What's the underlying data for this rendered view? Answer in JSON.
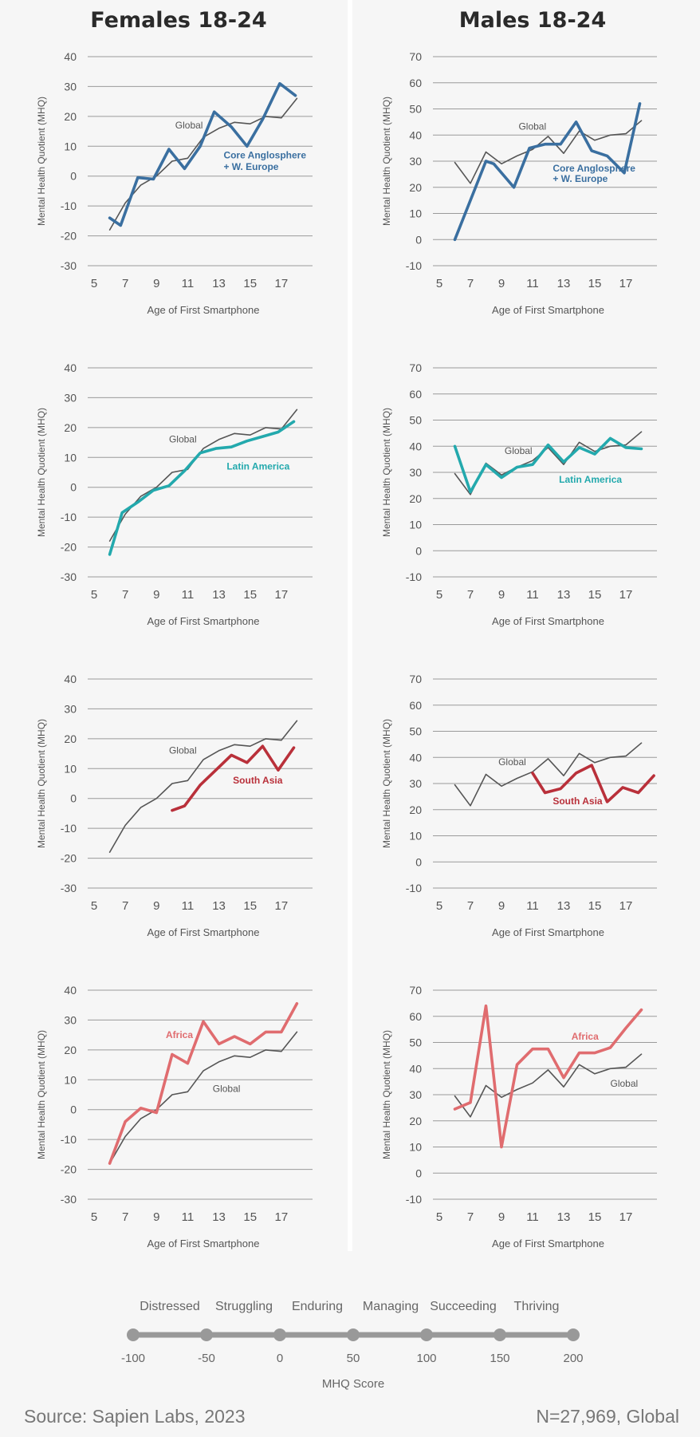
{
  "columns": {
    "left_title": "Females 18-24",
    "right_title": "Males 18-24"
  },
  "colors": {
    "global": "#555555",
    "core_anglosphere": "#3a6fa0",
    "latin_america": "#23a9ad",
    "south_asia": "#b9303a",
    "africa": "#e06c6f"
  },
  "chart_data": [
    {
      "type": "line",
      "panel": "females-core",
      "xlabel": "Age of First Smartphone",
      "ylabel": "Mental Health Quotient (MHQ)",
      "xlim": [
        5,
        19
      ],
      "xticks": [
        5,
        7,
        9,
        11,
        13,
        15,
        17
      ],
      "ylim": [
        -30,
        40
      ],
      "yticks": [
        -30,
        -20,
        -10,
        0,
        10,
        20,
        30,
        40
      ],
      "grid": true,
      "series": [
        {
          "name": "Global",
          "color": "#555555",
          "x": [
            6,
            7,
            8,
            9,
            10,
            11,
            12,
            13,
            14,
            15,
            16,
            17,
            18
          ],
          "y": [
            -18,
            -9,
            -3,
            0,
            5,
            6,
            13,
            16,
            18,
            17.5,
            20,
            19.5,
            26
          ]
        },
        {
          "name": "Core Anglosphere + W. Europe",
          "color": "#3a6fa0",
          "x": [
            6,
            6.7,
            7.8,
            8.8,
            9.8,
            10.8,
            11.8,
            12.7,
            13.8,
            14.8,
            15.8,
            16.9,
            17.9
          ],
          "y": [
            -14,
            -16.5,
            -0.5,
            -1,
            9,
            2.5,
            10,
            21.5,
            16.5,
            10,
            19,
            31,
            27
          ]
        }
      ],
      "annotations": [
        {
          "text": "Global",
          "x": 10.2,
          "y": 16
        },
        {
          "text": "Core Anglosphere",
          "x": 13.3,
          "y": 6
        },
        {
          "text": "+ W. Europe",
          "x": 13.3,
          "y": 2
        }
      ]
    },
    {
      "type": "line",
      "panel": "males-core",
      "xlabel": "Age of First Smartphone",
      "ylabel": "Mental Health Quotient (MHQ)",
      "xlim": [
        5,
        19
      ],
      "xticks": [
        5,
        7,
        9,
        11,
        13,
        15,
        17
      ],
      "ylim": [
        -10,
        70
      ],
      "yticks": [
        -10,
        0,
        10,
        20,
        30,
        40,
        50,
        60,
        70
      ],
      "grid": true,
      "series": [
        {
          "name": "Global",
          "color": "#555555",
          "x": [
            6,
            7,
            8,
            9,
            10,
            11,
            12,
            13,
            14,
            15,
            16,
            17,
            18
          ],
          "y": [
            29.5,
            21.5,
            33.5,
            29,
            32,
            34.5,
            39.5,
            33,
            41.5,
            38,
            40,
            40.5,
            45.5
          ]
        },
        {
          "name": "Core Anglosphere + W. Europe",
          "color": "#3a6fa0",
          "x": [
            6,
            8,
            8.5,
            9.8,
            10.8,
            11.8,
            12.8,
            13.8,
            14.8,
            15.8,
            16.9,
            17.9
          ],
          "y": [
            0,
            30,
            29,
            20,
            35,
            36.5,
            36.5,
            45,
            34,
            32,
            25.5,
            52
          ]
        }
      ],
      "annotations": [
        {
          "text": "Global",
          "x": 10.1,
          "y": 42
        },
        {
          "text": "Core Anglosphere",
          "x": 12.3,
          "y": 26
        },
        {
          "text": "+ W. Europe",
          "x": 12.3,
          "y": 22
        }
      ]
    },
    {
      "type": "line",
      "panel": "females-latam",
      "xlabel": "Age of First Smartphone",
      "ylabel": "Mental Health Quotient (MHQ)",
      "xlim": [
        5,
        19
      ],
      "xticks": [
        5,
        7,
        9,
        11,
        13,
        15,
        17
      ],
      "ylim": [
        -30,
        40
      ],
      "yticks": [
        -30,
        -20,
        -10,
        0,
        10,
        20,
        30,
        40
      ],
      "grid": true,
      "series": [
        {
          "name": "Global",
          "color": "#555555",
          "x": [
            6,
            7,
            8,
            9,
            10,
            11,
            12,
            13,
            14,
            15,
            16,
            17,
            18
          ],
          "y": [
            -18,
            -9,
            -3,
            0,
            5,
            6,
            13,
            16,
            18,
            17.5,
            20,
            19.5,
            26
          ]
        },
        {
          "name": "Latin America",
          "color": "#23a9ad",
          "x": [
            6,
            6.8,
            7.8,
            8.8,
            9.8,
            10.8,
            11.8,
            12.8,
            13.8,
            14.8,
            15.8,
            16.8,
            17.8
          ],
          "y": [
            -22.5,
            -8.5,
            -5,
            -1,
            0.5,
            5.5,
            11.5,
            13,
            13.5,
            15.5,
            17,
            18.5,
            22
          ]
        }
      ],
      "annotations": [
        {
          "text": "Global",
          "x": 9.8,
          "y": 15
        },
        {
          "text": "Latin America",
          "x": 13.5,
          "y": 6
        }
      ]
    },
    {
      "type": "line",
      "panel": "males-latam",
      "xlabel": "Age of First Smartphone",
      "ylabel": "Mental Health Quotient (MHQ)",
      "xlim": [
        5,
        19
      ],
      "xticks": [
        5,
        7,
        9,
        11,
        13,
        15,
        17
      ],
      "ylim": [
        -10,
        70
      ],
      "yticks": [
        -10,
        0,
        10,
        20,
        30,
        40,
        50,
        60,
        70
      ],
      "grid": true,
      "series": [
        {
          "name": "Global",
          "color": "#555555",
          "x": [
            6,
            7,
            8,
            9,
            10,
            11,
            12,
            13,
            14,
            15,
            16,
            17,
            18
          ],
          "y": [
            29.5,
            21.5,
            33.5,
            29,
            32,
            34.5,
            39.5,
            33,
            41.5,
            38,
            40,
            40.5,
            45.5
          ]
        },
        {
          "name": "Latin America",
          "color": "#23a9ad",
          "x": [
            6,
            7,
            8,
            9,
            10,
            11,
            12,
            13,
            14,
            15,
            16,
            17,
            18
          ],
          "y": [
            40,
            22.5,
            33,
            28,
            32,
            33,
            40.5,
            34,
            39.5,
            37,
            43,
            39.5,
            39
          ]
        }
      ],
      "annotations": [
        {
          "text": "Global",
          "x": 9.2,
          "y": 37
        },
        {
          "text": "Latin America",
          "x": 12.7,
          "y": 26
        }
      ]
    },
    {
      "type": "line",
      "panel": "females-southasia",
      "xlabel": "Age of First Smartphone",
      "ylabel": "Mental Health Quotient (MHQ)",
      "xlim": [
        5,
        19
      ],
      "xticks": [
        5,
        7,
        9,
        11,
        13,
        15,
        17
      ],
      "ylim": [
        -30,
        40
      ],
      "yticks": [
        -30,
        -20,
        -10,
        0,
        10,
        20,
        30,
        40
      ],
      "grid": true,
      "series": [
        {
          "name": "Global",
          "color": "#555555",
          "x": [
            6,
            7,
            8,
            9,
            10,
            11,
            12,
            13,
            14,
            15,
            16,
            17,
            18
          ],
          "y": [
            -18,
            -9,
            -3,
            0,
            5,
            6,
            13,
            16,
            18,
            17.5,
            20,
            19.5,
            26
          ]
        },
        {
          "name": "South Asia",
          "color": "#b9303a",
          "x": [
            10,
            10.8,
            11.8,
            12.8,
            13.8,
            14.8,
            15.8,
            16.8,
            17.8
          ],
          "y": [
            -4,
            -2.5,
            4.5,
            9.5,
            14.5,
            12,
            17.5,
            9.5,
            17
          ]
        }
      ],
      "annotations": [
        {
          "text": "Global",
          "x": 9.8,
          "y": 15
        },
        {
          "text": "South Asia",
          "x": 13.9,
          "y": 5
        }
      ]
    },
    {
      "type": "line",
      "panel": "males-southasia",
      "xlabel": "Age of First Smartphone",
      "ylabel": "Mental Health Quotient (MHQ)",
      "xlim": [
        5,
        19
      ],
      "xticks": [
        5,
        7,
        9,
        11,
        13,
        15,
        17
      ],
      "ylim": [
        -10,
        70
      ],
      "yticks": [
        -10,
        0,
        10,
        20,
        30,
        40,
        50,
        60,
        70
      ],
      "grid": true,
      "series": [
        {
          "name": "Global",
          "color": "#555555",
          "x": [
            6,
            7,
            8,
            9,
            10,
            11,
            12,
            13,
            14,
            15,
            16,
            17,
            18
          ],
          "y": [
            29.5,
            21.5,
            33.5,
            29,
            32,
            34.5,
            39.5,
            33,
            41.5,
            38,
            40,
            40.5,
            45.5
          ]
        },
        {
          "name": "South Asia",
          "color": "#b9303a",
          "x": [
            11,
            11.8,
            12.8,
            13.8,
            14.8,
            15.8,
            16.8,
            17.8,
            18.8
          ],
          "y": [
            34,
            26.5,
            28,
            34,
            37,
            23,
            28.5,
            26.5,
            33
          ]
        }
      ],
      "annotations": [
        {
          "text": "Global",
          "x": 8.8,
          "y": 37
        },
        {
          "text": "South Asia",
          "x": 12.3,
          "y": 22
        }
      ]
    },
    {
      "type": "line",
      "panel": "females-africa",
      "xlabel": "Age of First Smartphone",
      "ylabel": "Mental Health Quotient (MHQ)",
      "xlim": [
        5,
        19
      ],
      "xticks": [
        5,
        7,
        9,
        11,
        13,
        15,
        17
      ],
      "ylim": [
        -30,
        40
      ],
      "yticks": [
        -30,
        -20,
        -10,
        0,
        10,
        20,
        30,
        40
      ],
      "grid": true,
      "series": [
        {
          "name": "Global",
          "color": "#555555",
          "x": [
            6,
            7,
            8,
            9,
            10,
            11,
            12,
            13,
            14,
            15,
            16,
            17,
            18
          ],
          "y": [
            -18,
            -9,
            -3,
            0,
            5,
            6,
            13,
            16,
            18,
            17.5,
            20,
            19.5,
            26
          ]
        },
        {
          "name": "Africa",
          "color": "#e06c6f",
          "x": [
            6,
            7,
            8,
            9,
            10,
            11,
            12,
            13,
            14,
            15,
            16,
            17,
            18
          ],
          "y": [
            -18,
            -4,
            0.5,
            -1,
            18.5,
            15.5,
            29.5,
            22,
            24.5,
            22,
            26,
            26,
            35.5
          ]
        }
      ],
      "annotations": [
        {
          "text": "Africa",
          "x": 9.6,
          "y": 24
        },
        {
          "text": "Global",
          "x": 12.6,
          "y": 6
        }
      ]
    },
    {
      "type": "line",
      "panel": "males-africa",
      "xlabel": "Age of First Smartphone",
      "ylabel": "Mental Health Quotient (MHQ)",
      "xlim": [
        5,
        19
      ],
      "xticks": [
        5,
        7,
        9,
        11,
        13,
        15,
        17
      ],
      "ylim": [
        -10,
        70
      ],
      "yticks": [
        -10,
        0,
        10,
        20,
        30,
        40,
        50,
        60,
        70
      ],
      "grid": true,
      "series": [
        {
          "name": "Global",
          "color": "#555555",
          "x": [
            6,
            7,
            8,
            9,
            10,
            11,
            12,
            13,
            14,
            15,
            16,
            17,
            18
          ],
          "y": [
            29.5,
            21.5,
            33.5,
            29,
            32,
            34.5,
            39.5,
            33,
            41.5,
            38,
            40,
            40.5,
            45.5
          ]
        },
        {
          "name": "Africa",
          "color": "#e06c6f",
          "x": [
            6,
            7,
            8,
            9,
            10,
            11,
            12,
            13,
            14,
            15,
            16,
            17,
            18
          ],
          "y": [
            24.5,
            27,
            64,
            10,
            41.5,
            47.5,
            47.5,
            36.5,
            46,
            46,
            48,
            55.5,
            62.5
          ]
        }
      ],
      "annotations": [
        {
          "text": "Africa",
          "x": 13.5,
          "y": 51
        },
        {
          "text": "Global",
          "x": 16,
          "y": 33
        }
      ]
    }
  ],
  "mhq_scale": {
    "categories": [
      "Distressed",
      "Struggling",
      "Enduring",
      "Managing",
      "Succeeding",
      "Thriving"
    ],
    "ticks": [
      -100,
      -50,
      0,
      50,
      100,
      150,
      200
    ],
    "title": "MHQ Score"
  },
  "footer": {
    "source": "Source: Sapien Labs, 2023",
    "note": "N=27,969, Global"
  }
}
